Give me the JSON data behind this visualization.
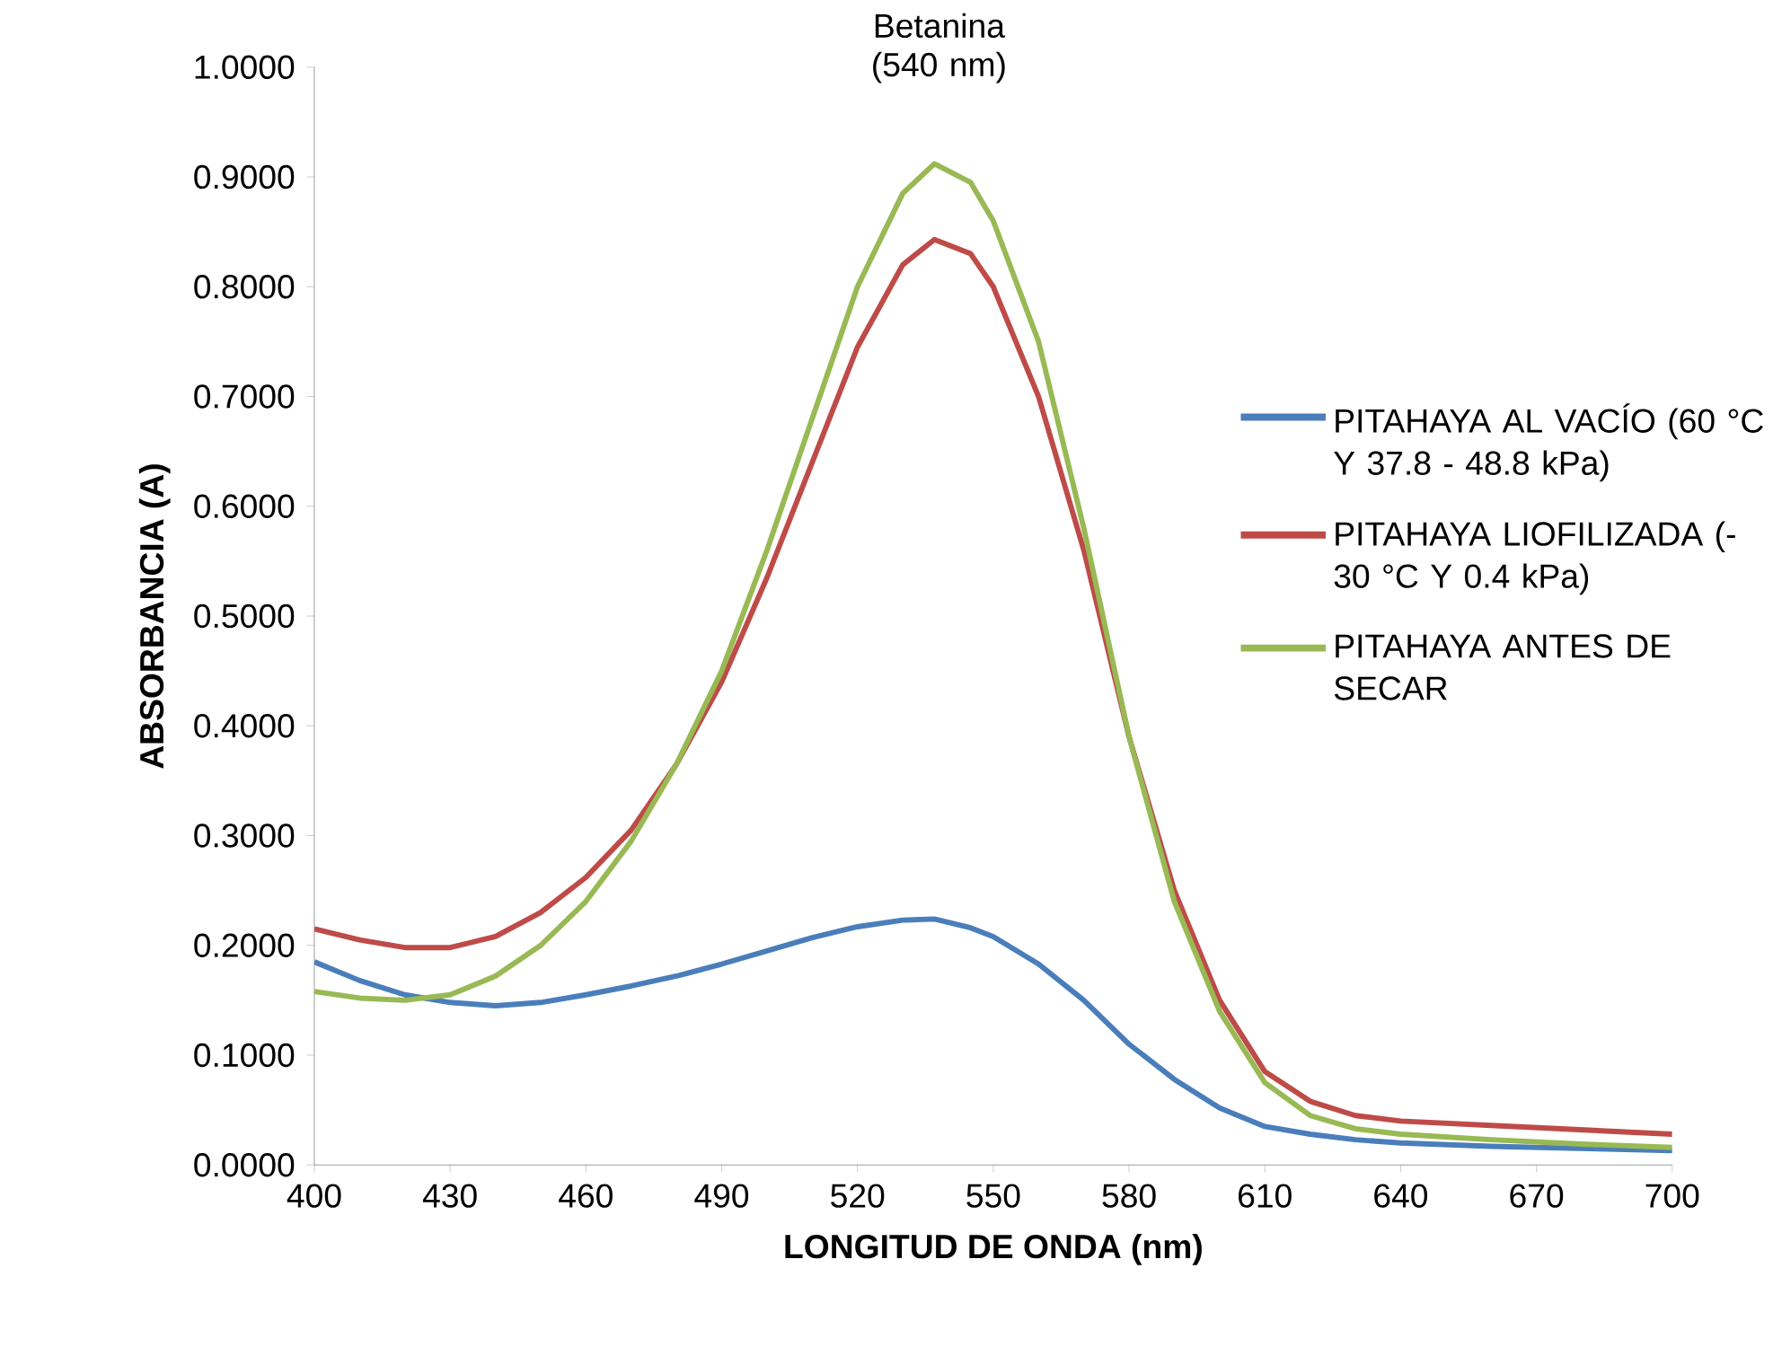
{
  "chart_data": {
    "type": "line",
    "title": "Betanina (540 nm)",
    "xlabel": "LONGITUD DE ONDA (nm)",
    "ylabel": "ABSORBANCIA (A)",
    "x": [
      400,
      410,
      420,
      430,
      440,
      450,
      460,
      470,
      480,
      490,
      500,
      510,
      520,
      530,
      537,
      545,
      550,
      560,
      570,
      580,
      590,
      600,
      610,
      620,
      630,
      640,
      660,
      680,
      700
    ],
    "series": [
      {
        "name": "PITAHAYA AL VACÍO (60 °C Y 37.8 - 48.8 kPa)",
        "color": "#4a7ebb",
        "values": [
          0.185,
          0.168,
          0.155,
          0.148,
          0.145,
          0.148,
          0.155,
          0.163,
          0.172,
          0.183,
          0.195,
          0.207,
          0.217,
          0.223,
          0.224,
          0.216,
          0.208,
          0.183,
          0.15,
          0.11,
          0.078,
          0.052,
          0.035,
          0.028,
          0.023,
          0.02,
          0.017,
          0.015,
          0.013
        ]
      },
      {
        "name": "PITAHAYA LIOFILIZADA (-30 °C Y 0.4 kPa)",
        "color": "#be4b48",
        "values": [
          0.215,
          0.205,
          0.198,
          0.198,
          0.208,
          0.23,
          0.262,
          0.305,
          0.365,
          0.44,
          0.535,
          0.64,
          0.745,
          0.82,
          0.843,
          0.83,
          0.8,
          0.7,
          0.56,
          0.39,
          0.25,
          0.15,
          0.085,
          0.058,
          0.045,
          0.04,
          0.036,
          0.032,
          0.028
        ]
      },
      {
        "name": "PITAHAYA ANTES DE SECAR",
        "color": "#98b954",
        "values": [
          0.158,
          0.152,
          0.15,
          0.155,
          0.172,
          0.2,
          0.24,
          0.295,
          0.365,
          0.45,
          0.56,
          0.68,
          0.8,
          0.885,
          0.912,
          0.895,
          0.86,
          0.75,
          0.58,
          0.39,
          0.24,
          0.14,
          0.075,
          0.045,
          0.033,
          0.028,
          0.023,
          0.019,
          0.016
        ]
      }
    ],
    "xlim": [
      400,
      700
    ],
    "xticks": [
      400,
      430,
      460,
      490,
      520,
      550,
      580,
      610,
      640,
      670,
      700
    ],
    "ylim": [
      0,
      1
    ],
    "yticks": [
      {
        "value": 0,
        "label": "0.0000"
      },
      {
        "value": 0.1,
        "label": "0.1000"
      },
      {
        "value": 0.2,
        "label": "0.2000"
      },
      {
        "value": 0.3,
        "label": "0.3000"
      },
      {
        "value": 0.4,
        "label": "0.4000"
      },
      {
        "value": 0.5,
        "label": "0.5000"
      },
      {
        "value": 0.6,
        "label": "0.6000"
      },
      {
        "value": 0.7,
        "label": "0.7000"
      },
      {
        "value": 0.8,
        "label": "0.8000"
      },
      {
        "value": 0.9,
        "label": "0.9000"
      },
      {
        "value": 1,
        "label": "1.0000"
      }
    ],
    "grid": false,
    "legend": "right",
    "marker": "none",
    "line_style": "solid"
  }
}
